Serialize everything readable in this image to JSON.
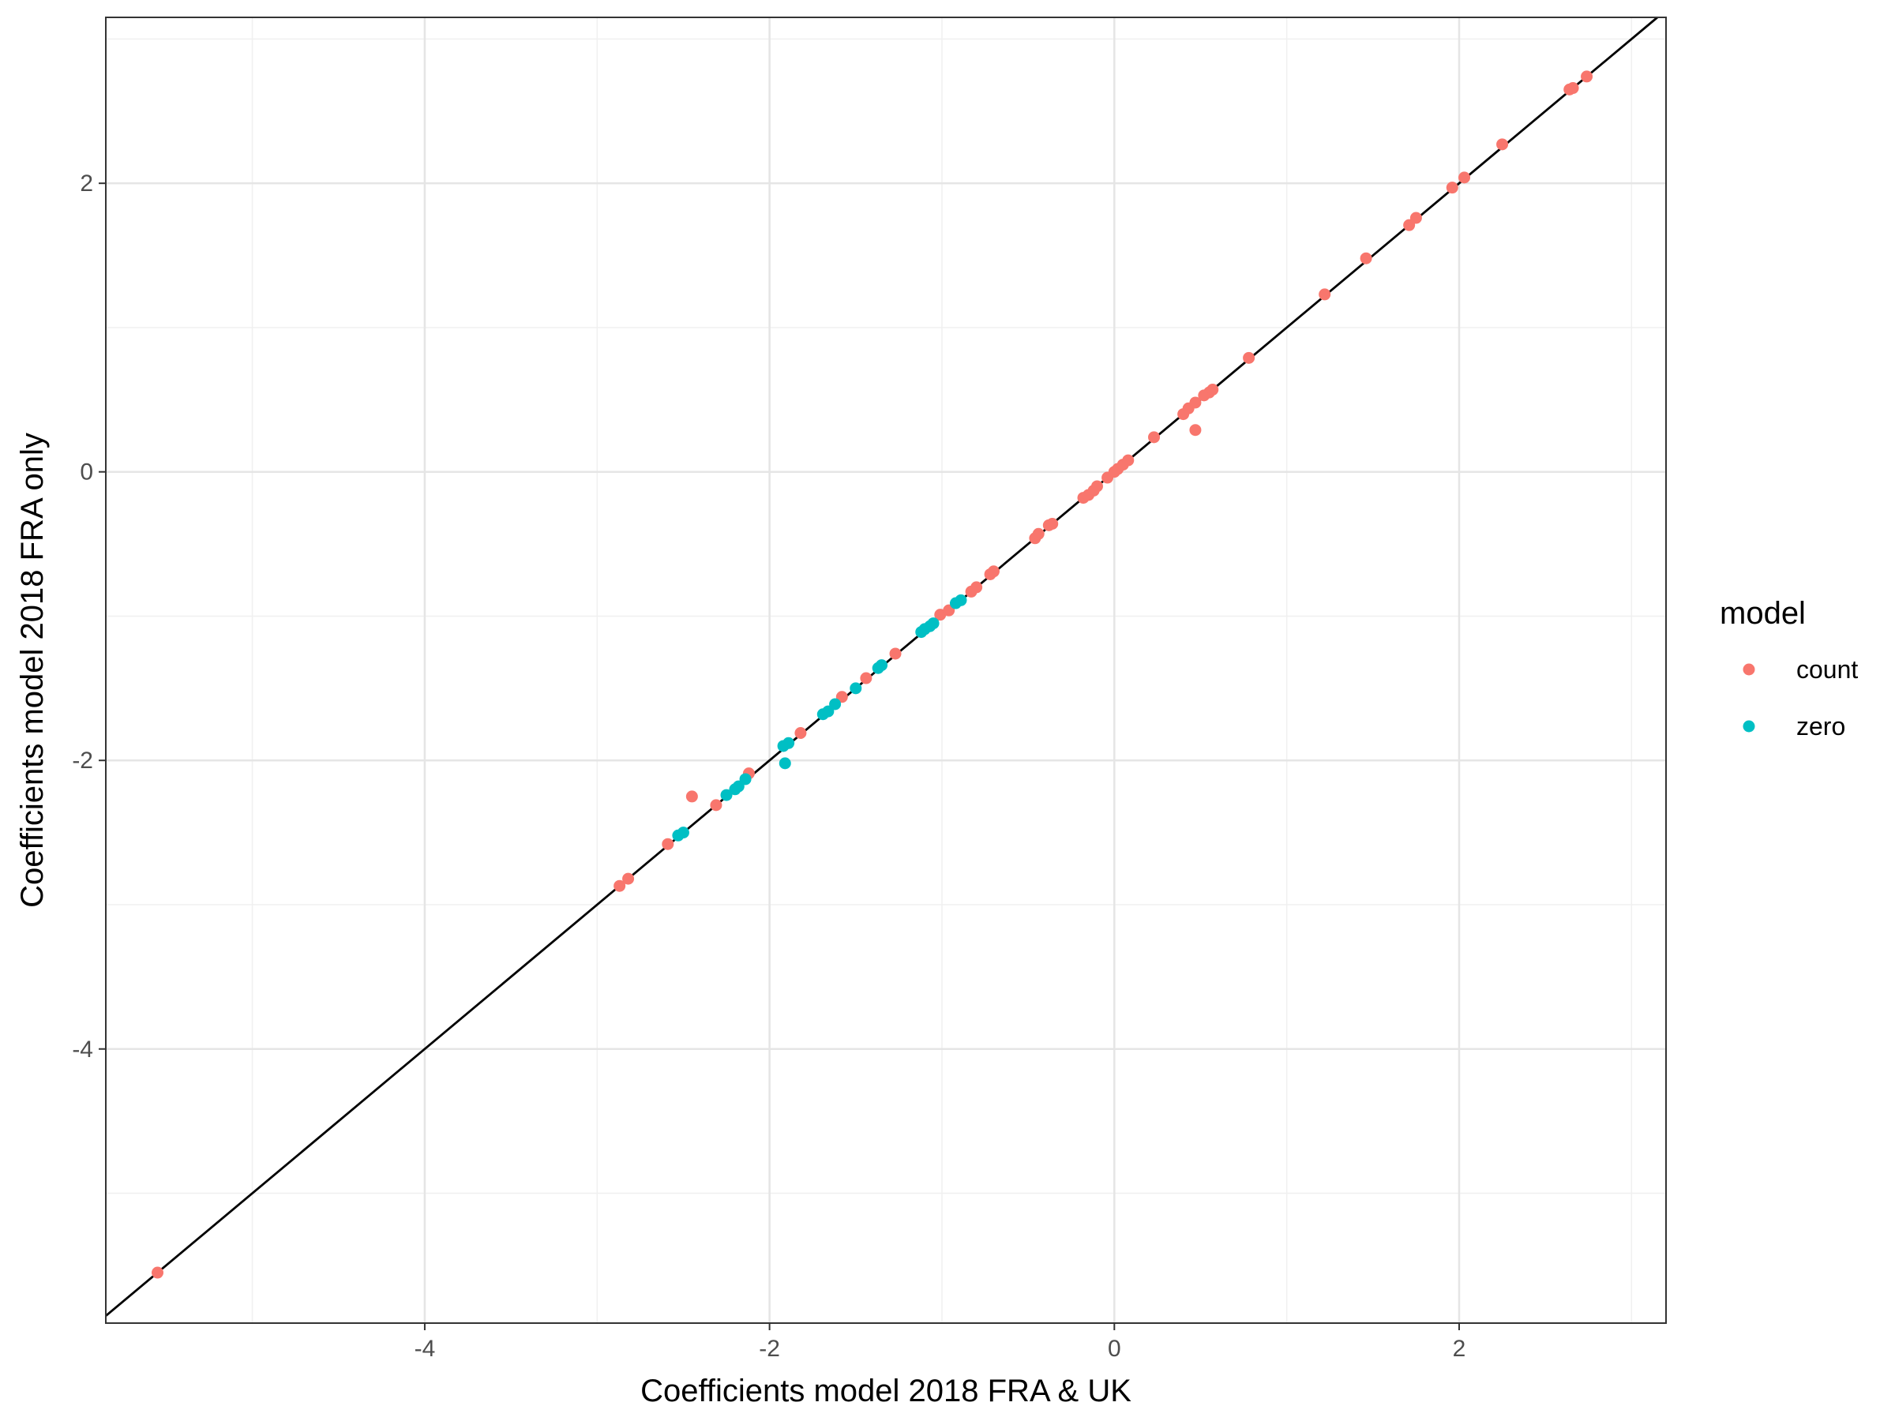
{
  "chart_data": {
    "type": "scatter",
    "xlabel": "Coefficients model 2018 FRA & UK",
    "ylabel": "Coefficients model 2018 FRA only",
    "xlim": [
      -5.85,
      3.2
    ],
    "ylim": [
      -5.9,
      3.15
    ],
    "x_ticks": [
      -4,
      -2,
      0,
      2
    ],
    "y_ticks": [
      -4,
      -2,
      0,
      2
    ],
    "x_tick_labels": [
      "-4",
      "-2",
      "0",
      "2"
    ],
    "y_tick_labels": [
      "-4",
      "-2",
      "0",
      "2"
    ],
    "grid": true,
    "reference_line": {
      "slope": 1,
      "intercept": 0,
      "color": "#000000"
    },
    "legend": {
      "title": "model",
      "position": "right"
    },
    "series": [
      {
        "name": "count",
        "color": "#F8766D",
        "points": [
          [
            -5.55,
            -5.55
          ],
          [
            -2.87,
            -2.87
          ],
          [
            -2.82,
            -2.82
          ],
          [
            -2.59,
            -2.58
          ],
          [
            -2.45,
            -2.25
          ],
          [
            -2.31,
            -2.31
          ],
          [
            -2.12,
            -2.09
          ],
          [
            -1.82,
            -1.81
          ],
          [
            -1.58,
            -1.56
          ],
          [
            -1.44,
            -1.43
          ],
          [
            -1.27,
            -1.26
          ],
          [
            -1.01,
            -0.99
          ],
          [
            -0.96,
            -0.96
          ],
          [
            -0.83,
            -0.83
          ],
          [
            -0.8,
            -0.8
          ],
          [
            -0.72,
            -0.71
          ],
          [
            -0.7,
            -0.69
          ],
          [
            -0.46,
            -0.46
          ],
          [
            -0.44,
            -0.43
          ],
          [
            -0.38,
            -0.37
          ],
          [
            -0.36,
            -0.36
          ],
          [
            -0.18,
            -0.18
          ],
          [
            -0.15,
            -0.16
          ],
          [
            -0.12,
            -0.13
          ],
          [
            -0.1,
            -0.1
          ],
          [
            -0.04,
            -0.04
          ],
          [
            0.0,
            0.0
          ],
          [
            0.02,
            0.02
          ],
          [
            0.05,
            0.05
          ],
          [
            0.08,
            0.08
          ],
          [
            0.23,
            0.24
          ],
          [
            0.4,
            0.4
          ],
          [
            0.43,
            0.44
          ],
          [
            0.47,
            0.48
          ],
          [
            0.47,
            0.29
          ],
          [
            0.52,
            0.53
          ],
          [
            0.55,
            0.55
          ],
          [
            0.57,
            0.57
          ],
          [
            0.78,
            0.79
          ],
          [
            1.22,
            1.23
          ],
          [
            1.46,
            1.48
          ],
          [
            1.71,
            1.71
          ],
          [
            1.75,
            1.76
          ],
          [
            1.96,
            1.97
          ],
          [
            2.03,
            2.04
          ],
          [
            2.25,
            2.27
          ],
          [
            2.64,
            2.65
          ],
          [
            2.66,
            2.66
          ],
          [
            2.74,
            2.74
          ]
        ]
      },
      {
        "name": "zero",
        "color": "#00BFC4",
        "points": [
          [
            -2.53,
            -2.52
          ],
          [
            -2.5,
            -2.5
          ],
          [
            -2.25,
            -2.24
          ],
          [
            -2.2,
            -2.2
          ],
          [
            -2.18,
            -2.18
          ],
          [
            -2.14,
            -2.13
          ],
          [
            -1.92,
            -1.9
          ],
          [
            -1.89,
            -1.88
          ],
          [
            -1.91,
            -2.02
          ],
          [
            -1.69,
            -1.68
          ],
          [
            -1.66,
            -1.66
          ],
          [
            -1.62,
            -1.61
          ],
          [
            -1.5,
            -1.5
          ],
          [
            -1.37,
            -1.36
          ],
          [
            -1.35,
            -1.34
          ],
          [
            -1.12,
            -1.11
          ],
          [
            -1.1,
            -1.09
          ],
          [
            -1.07,
            -1.07
          ],
          [
            -1.05,
            -1.05
          ],
          [
            -0.92,
            -0.91
          ],
          [
            -0.89,
            -0.89
          ]
        ]
      }
    ]
  }
}
